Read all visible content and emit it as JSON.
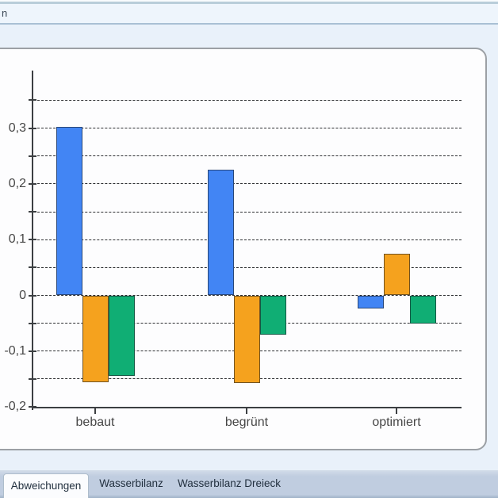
{
  "header": {
    "partial_text": "n"
  },
  "tabs": {
    "items": [
      {
        "label": "Abweichungen",
        "active": true
      },
      {
        "label": "Wasserbilanz",
        "active": false
      },
      {
        "label": "Wasserbilanz Dreieck",
        "active": false
      }
    ]
  },
  "chart_data": {
    "type": "bar",
    "title": "",
    "categories": [
      "bebaut",
      "begrünt",
      "optimiert"
    ],
    "series": [
      {
        "name": "series-blue",
        "color": "#4285F4",
        "values": [
          0.302,
          0.225,
          -0.024
        ]
      },
      {
        "name": "series-orange",
        "color": "#F5A21E",
        "values": [
          -0.156,
          -0.157,
          0.075
        ]
      },
      {
        "name": "series-green",
        "color": "#10AE74",
        "values": [
          -0.144,
          -0.07,
          -0.051
        ]
      }
    ],
    "ylim": [
      -0.2,
      0.405
    ],
    "ytick_values": [
      0.3,
      0.2,
      0.1,
      0,
      -0.1,
      -0.2
    ],
    "ytick_labels": [
      "0,3",
      "0,2",
      "0,1",
      "0",
      "-0,1",
      "-0,2"
    ],
    "grid_step": 0.05,
    "grid_range": [
      -0.15,
      0.35
    ],
    "grid_style": "dashed horizontal",
    "legend": "none",
    "decimal_separator": ","
  },
  "colors": {
    "page-bg": "#e9f1fa",
    "header-hiline": "#f9fcfe",
    "header-topline": "#b9cdd9",
    "header-bg": "#eef5fc",
    "header-botline": "#a9c0d4",
    "header-text": "#3a4754",
    "panel-bg": "#fdfdfe",
    "panel-border": "#9ca0a5",
    "axis": "#3c3f42",
    "grid": "#2b2d30",
    "label": "#474747",
    "bar-border": "rgba(25,30,36,0.6)",
    "strip-top": "#d2dce9",
    "strip-bg": "#c0cde0",
    "strip-edge": "#9fb2c8",
    "tab-text": "#22303f",
    "active-tab-bg": "#fbfcfe",
    "active-tab-border": "#aebdcc"
  }
}
